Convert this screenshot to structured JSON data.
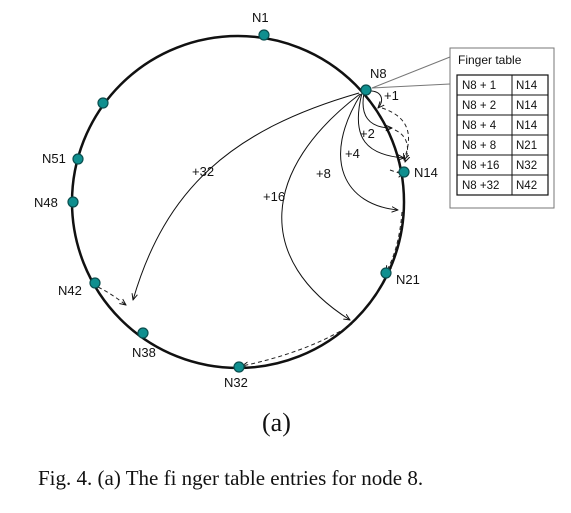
{
  "nodes": [
    {
      "id": "N1",
      "label": "N1"
    },
    {
      "id": "N8",
      "label": "N8"
    },
    {
      "id": "N14",
      "label": "N14"
    },
    {
      "id": "N21",
      "label": "N21"
    },
    {
      "id": "N32",
      "label": "N32"
    },
    {
      "id": "N38",
      "label": "N38"
    },
    {
      "id": "N42",
      "label": "N42"
    },
    {
      "id": "N48",
      "label": "N48"
    },
    {
      "id": "N51",
      "label": "N51"
    },
    {
      "id": "N56",
      "label": ""
    }
  ],
  "fingers": [
    {
      "label": "+1",
      "target": "N14"
    },
    {
      "label": "+2",
      "target": "N14"
    },
    {
      "label": "+4",
      "target": "N14"
    },
    {
      "label": "+8",
      "target": "N21"
    },
    {
      "label": "+16",
      "target": "N32"
    },
    {
      "label": "+32",
      "target": "N42"
    }
  ],
  "finger_table": {
    "title": "Finger table",
    "rows": [
      {
        "start": "N8 + 1",
        "node": "N14"
      },
      {
        "start": "N8 + 2",
        "node": "N14"
      },
      {
        "start": "N8 + 4",
        "node": "N14"
      },
      {
        "start": "N8 + 8",
        "node": "N21"
      },
      {
        "start": "N8 +16",
        "node": "N32"
      },
      {
        "start": "N8 +32",
        "node": "N42"
      }
    ]
  },
  "subfigure_label": "(a)",
  "caption": "Fig. 4.   (a) The fi nger table entries for node 8.",
  "colors": {
    "node_fill": "#0f8f8f",
    "node_stroke": "#0a4f4f",
    "ink": "#111111"
  }
}
